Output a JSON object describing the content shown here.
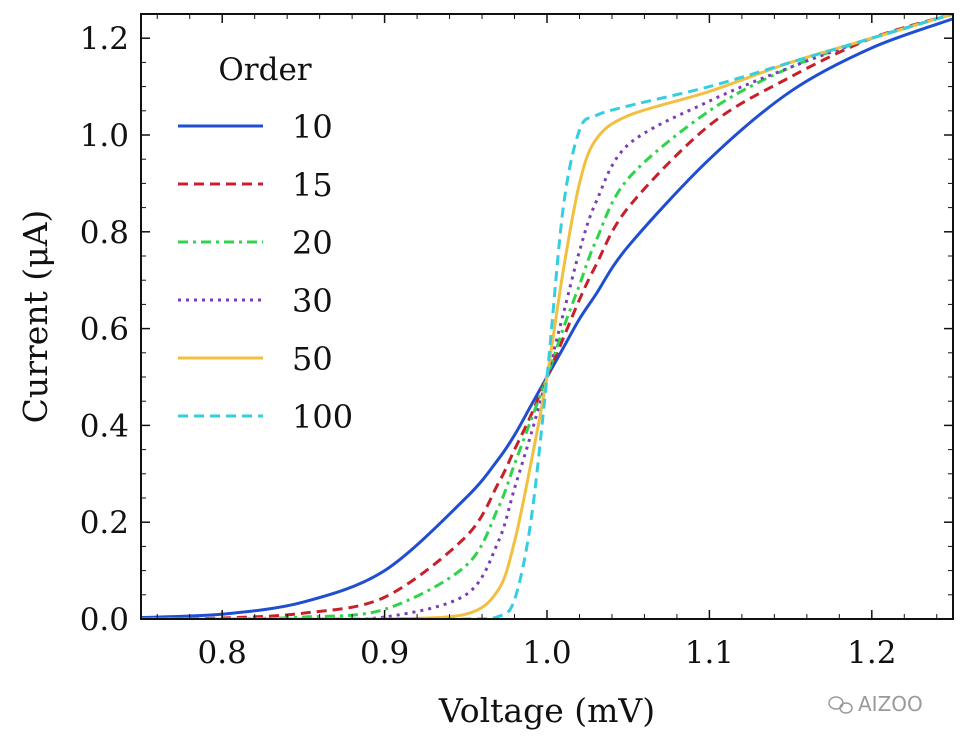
{
  "watermark": "AIZOO",
  "chart_data": {
    "type": "line",
    "title": "",
    "xlabel": "Voltage (mV)",
    "ylabel": "Current (μA)",
    "xlim": [
      0.75,
      1.25
    ],
    "ylim": [
      0.0,
      1.25
    ],
    "xticks": [
      0.8,
      0.9,
      1.0,
      1.1,
      1.2
    ],
    "xtick_labels": [
      "0.8",
      "0.9",
      "1.0",
      "1.1",
      "1.2"
    ],
    "yticks": [
      0.0,
      0.2,
      0.4,
      0.6,
      0.8,
      1.0,
      1.2
    ],
    "ytick_labels": [
      "0.0",
      "0.2",
      "0.4",
      "0.6",
      "0.8",
      "1.0",
      "1.2"
    ],
    "grid": false,
    "legend": {
      "title": "Order",
      "placement": "top-left"
    },
    "x": [
      0.75,
      0.8,
      0.85,
      0.9,
      0.95,
      0.97,
      0.98,
      0.99,
      1.0,
      1.01,
      1.02,
      1.03,
      1.05,
      1.1,
      1.15,
      1.2,
      1.25
    ],
    "series": [
      {
        "name": "10",
        "color": "#1f4fd0",
        "dash": "solid",
        "values": [
          0.003,
          0.01,
          0.035,
          0.1,
          0.25,
          0.33,
          0.38,
          0.44,
          0.5,
          0.56,
          0.62,
          0.67,
          0.77,
          0.95,
          1.09,
          1.18,
          1.24
        ]
      },
      {
        "name": "15",
        "color": "#c8202a",
        "dash": "dashed",
        "values": [
          0.0,
          0.002,
          0.012,
          0.045,
          0.17,
          0.28,
          0.35,
          0.42,
          0.5,
          0.58,
          0.66,
          0.73,
          0.85,
          1.02,
          1.12,
          1.2,
          1.25
        ]
      },
      {
        "name": "20",
        "color": "#2fd44a",
        "dash": "dashdot",
        "values": [
          0.0,
          0.0,
          0.004,
          0.02,
          0.11,
          0.23,
          0.32,
          0.41,
          0.5,
          0.6,
          0.69,
          0.78,
          0.91,
          1.05,
          1.14,
          1.2,
          1.25
        ]
      },
      {
        "name": "30",
        "color": "#7a3fb8",
        "dash": "dotted",
        "values": [
          0.0,
          0.0,
          0.0,
          0.004,
          0.05,
          0.16,
          0.27,
          0.38,
          0.5,
          0.63,
          0.76,
          0.86,
          0.98,
          1.07,
          1.14,
          1.2,
          1.25
        ]
      },
      {
        "name": "50",
        "color": "#f2c040",
        "dash": "solid",
        "values": [
          0.0,
          0.0,
          0.0,
          0.0,
          0.01,
          0.06,
          0.16,
          0.32,
          0.5,
          0.72,
          0.9,
          0.99,
          1.04,
          1.09,
          1.15,
          1.2,
          1.25
        ]
      },
      {
        "name": "100",
        "color": "#35cde0",
        "dash": "dashed",
        "values": [
          0.0,
          0.0,
          0.0,
          0.0,
          0.0,
          0.005,
          0.04,
          0.2,
          0.5,
          0.85,
          1.01,
          1.04,
          1.06,
          1.1,
          1.15,
          1.2,
          1.25
        ]
      }
    ]
  }
}
